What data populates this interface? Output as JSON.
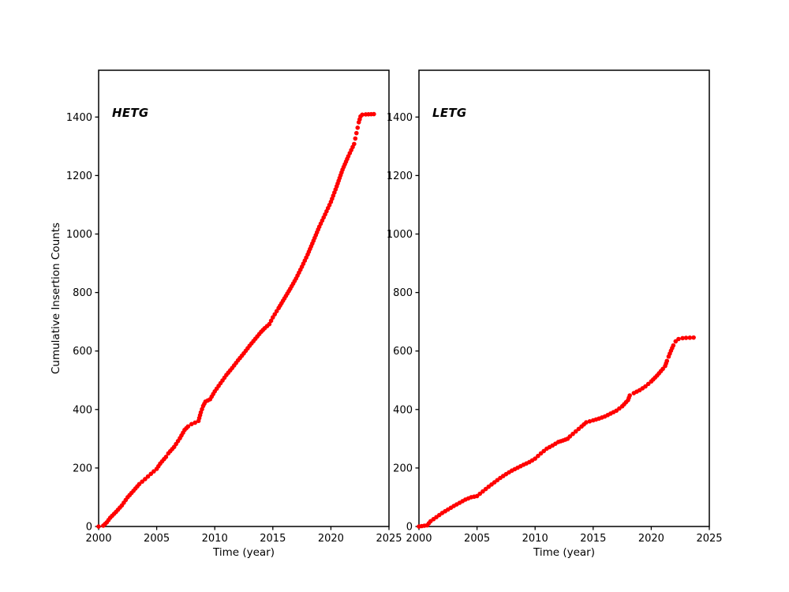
{
  "figure": {
    "ylabel": "Cumulative Insertion Counts",
    "background_color": "#ffffff",
    "axis_color": "#000000",
    "data_color": "#ff0000"
  },
  "chart_data": [
    {
      "type": "scatter",
      "title": "HETG",
      "xlabel": "Time (year)",
      "ylabel": "Cumulative Insertion Counts",
      "legend": "none",
      "grid": false,
      "marker": "dot",
      "color": "#ff0000",
      "xlim": [
        2000,
        2025
      ],
      "ylim": [
        0,
        1560
      ],
      "xticks": [
        2000,
        2005,
        2010,
        2015,
        2020,
        2025
      ],
      "yticks": [
        0,
        200,
        400,
        600,
        800,
        1000,
        1200,
        1400
      ],
      "points": [
        [
          2000.0,
          0
        ],
        [
          2000.4,
          3
        ],
        [
          2000.7,
          14
        ],
        [
          2001.0,
          30
        ],
        [
          2001.5,
          50
        ],
        [
          2002.0,
          72
        ],
        [
          2002.5,
          100
        ],
        [
          2003.0,
          122
        ],
        [
          2003.5,
          145
        ],
        [
          2004.0,
          162
        ],
        [
          2004.5,
          180
        ],
        [
          2005.0,
          197
        ],
        [
          2005.3,
          215
        ],
        [
          2005.8,
          238
        ],
        [
          2006.0,
          250
        ],
        [
          2006.5,
          272
        ],
        [
          2007.0,
          302
        ],
        [
          2007.4,
          330
        ],
        [
          2007.7,
          342
        ],
        [
          2008.0,
          350
        ],
        [
          2008.3,
          355
        ],
        [
          2008.6,
          361
        ],
        [
          2008.8,
          390
        ],
        [
          2009.0,
          412
        ],
        [
          2009.2,
          427
        ],
        [
          2009.6,
          435
        ],
        [
          2010.0,
          462
        ],
        [
          2010.5,
          490
        ],
        [
          2011.0,
          518
        ],
        [
          2011.5,
          542
        ],
        [
          2012.0,
          568
        ],
        [
          2012.5,
          592
        ],
        [
          2013.0,
          618
        ],
        [
          2013.5,
          642
        ],
        [
          2014.0,
          666
        ],
        [
          2014.3,
          678
        ],
        [
          2014.7,
          692
        ],
        [
          2015.0,
          715
        ],
        [
          2015.5,
          747
        ],
        [
          2016.0,
          780
        ],
        [
          2016.5,
          813
        ],
        [
          2017.0,
          848
        ],
        [
          2017.5,
          888
        ],
        [
          2018.0,
          930
        ],
        [
          2018.5,
          977
        ],
        [
          2019.0,
          1025
        ],
        [
          2019.5,
          1067
        ],
        [
          2020.0,
          1110
        ],
        [
          2020.5,
          1163
        ],
        [
          2021.0,
          1220
        ],
        [
          2021.5,
          1266
        ],
        [
          2022.0,
          1308
        ],
        [
          2022.2,
          1345
        ],
        [
          2022.4,
          1382
        ],
        [
          2022.55,
          1402
        ],
        [
          2022.7,
          1408
        ],
        [
          2023.0,
          1409
        ],
        [
          2023.7,
          1410
        ]
      ]
    },
    {
      "type": "scatter",
      "title": "LETG",
      "xlabel": "Time (year)",
      "ylabel": "Cumulative Insertion Counts",
      "legend": "none",
      "grid": false,
      "marker": "dot",
      "color": "#ff0000",
      "xlim": [
        2000,
        2025
      ],
      "ylim": [
        0,
        1560
      ],
      "xticks": [
        2000,
        2005,
        2010,
        2015,
        2020,
        2025
      ],
      "yticks": [
        0,
        200,
        400,
        600,
        800,
        1000,
        1200,
        1400
      ],
      "points": [
        [
          2000.0,
          0
        ],
        [
          2000.7,
          4
        ],
        [
          2001.0,
          18
        ],
        [
          2001.5,
          32
        ],
        [
          2002.0,
          46
        ],
        [
          2002.5,
          58
        ],
        [
          2003.0,
          70
        ],
        [
          2003.5,
          81
        ],
        [
          2004.0,
          92
        ],
        [
          2004.5,
          100
        ],
        [
          2005.0,
          104
        ],
        [
          2005.5,
          120
        ],
        [
          2006.0,
          136
        ],
        [
          2006.5,
          151
        ],
        [
          2007.0,
          166
        ],
        [
          2007.5,
          179
        ],
        [
          2008.0,
          191
        ],
        [
          2008.5,
          201
        ],
        [
          2009.0,
          211
        ],
        [
          2009.5,
          220
        ],
        [
          2010.0,
          232
        ],
        [
          2010.5,
          250
        ],
        [
          2011.0,
          266
        ],
        [
          2011.5,
          277
        ],
        [
          2012.0,
          289
        ],
        [
          2012.4,
          294
        ],
        [
          2012.8,
          300
        ],
        [
          2013.0,
          308
        ],
        [
          2013.5,
          325
        ],
        [
          2014.0,
          342
        ],
        [
          2014.4,
          356
        ],
        [
          2015.0,
          363
        ],
        [
          2015.5,
          369
        ],
        [
          2016.0,
          376
        ],
        [
          2016.5,
          386
        ],
        [
          2017.0,
          396
        ],
        [
          2017.5,
          411
        ],
        [
          2018.0,
          432
        ],
        [
          2018.15,
          448
        ],
        [
          2018.5,
          456
        ],
        [
          2019.0,
          466
        ],
        [
          2019.5,
          479
        ],
        [
          2020.0,
          496
        ],
        [
          2020.5,
          516
        ],
        [
          2021.0,
          539
        ],
        [
          2021.2,
          549
        ],
        [
          2021.35,
          566
        ],
        [
          2021.5,
          581
        ],
        [
          2021.7,
          601
        ],
        [
          2021.9,
          619
        ],
        [
          2022.1,
          633
        ],
        [
          2022.35,
          641
        ],
        [
          2022.7,
          644
        ],
        [
          2023.0,
          645
        ],
        [
          2023.65,
          646
        ]
      ]
    }
  ]
}
